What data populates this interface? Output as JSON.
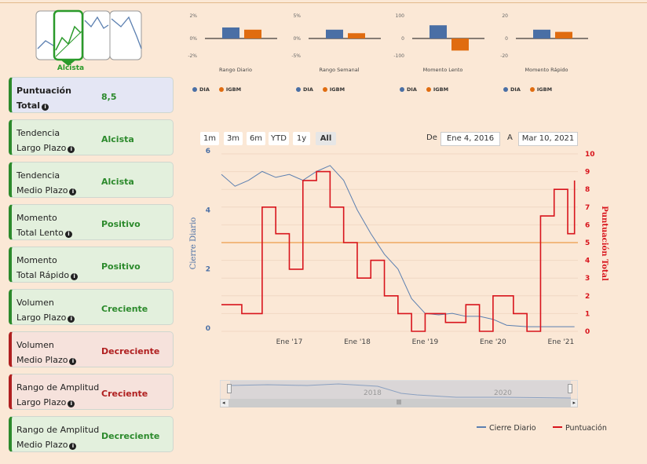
{
  "trend_label": "Alcista",
  "cards": [
    {
      "label1": "Puntuación",
      "label2": "Total",
      "value": "8,5",
      "kind": "total"
    },
    {
      "label1": "Tendencia",
      "label2": "Largo Plazo",
      "value": "Alcista",
      "kind": "pos"
    },
    {
      "label1": "Tendencia",
      "label2": "Medio Plazo",
      "value": "Alcista",
      "kind": "pos"
    },
    {
      "label1": "Momento",
      "label2": "Total Lento",
      "value": "Positivo",
      "kind": "pos"
    },
    {
      "label1": "Momento",
      "label2": "Total Rápido",
      "value": "Positivo",
      "kind": "pos"
    },
    {
      "label1": "Volumen",
      "label2": "Largo Plazo",
      "value": "Creciente",
      "kind": "pos"
    },
    {
      "label1": "Volumen",
      "label2": "Medio Plazo",
      "value": "Decreciente",
      "kind": "neg"
    },
    {
      "label1": "Rango de Amplitud",
      "label2": "Largo Plazo",
      "value": "Creciente",
      "kind": "neg"
    },
    {
      "label1": "Rango de Amplitud",
      "label2": "Medio Plazo",
      "value": "Decreciente",
      "kind": "pos"
    }
  ],
  "colors": {
    "dia": "#4a6fa5",
    "igbm": "#e06c10",
    "cierre": "#5b7fb0",
    "puntuacion": "#d8141c",
    "pos": "#2c8a2c",
    "neg": "#b02020"
  },
  "mini_charts": [
    {
      "title": "Rango Diario",
      "ticks": [
        "2%",
        "0%",
        "-2%"
      ],
      "dia": 1.0,
      "igbm": 0.8,
      "max": 2,
      "legend": [
        "DIA",
        "IGBM"
      ]
    },
    {
      "title": "Rango Semanal",
      "ticks": [
        "5%",
        "0%",
        "-5%"
      ],
      "dia": 2.0,
      "igbm": 1.2,
      "max": 5,
      "legend": [
        "DIA",
        "IGBM"
      ]
    },
    {
      "title": "Momento Lento",
      "ticks": [
        "100",
        "0",
        "-100"
      ],
      "dia": 60,
      "igbm": -55,
      "max": 100,
      "legend": [
        "DIA",
        "IGBM"
      ]
    },
    {
      "title": "Momento Rápido",
      "ticks": [
        "20",
        "0",
        "-20"
      ],
      "dia": 8,
      "igbm": 6,
      "max": 20,
      "legend": [
        "DIA",
        "IGBM"
      ]
    }
  ],
  "range_buttons": [
    "1m",
    "3m",
    "6m",
    "YTD",
    "1y",
    "All"
  ],
  "active_range": "All",
  "date_from_label": "De",
  "date_from": "Ene 4, 2016",
  "date_to_label": "A",
  "date_to": "Mar 10, 2021",
  "chart_data": {
    "type": "line",
    "xlabel": "",
    "ylabel_left": "Cierre Diario",
    "ylabel_right": "Puntuación Total",
    "x_ticks": [
      "Ene '17",
      "Ene '18",
      "Ene '19",
      "Ene '20",
      "Ene '21"
    ],
    "y_left_ticks": [
      "6",
      "4",
      "2",
      "0"
    ],
    "y_right_ticks": [
      "10",
      "9",
      "8",
      "7",
      "6",
      "5",
      "4",
      "3",
      "2",
      "1",
      "0"
    ],
    "ylim_left": [
      0,
      6
    ],
    "ylim_right": [
      0,
      10
    ],
    "threshold_right": 5,
    "series": [
      {
        "name": "Cierre Diario",
        "axis": "left",
        "x": [
          2016.0,
          2016.2,
          2016.4,
          2016.6,
          2016.8,
          2017.0,
          2017.2,
          2017.4,
          2017.6,
          2017.8,
          2018.0,
          2018.2,
          2018.4,
          2018.6,
          2018.8,
          2019.0,
          2019.2,
          2019.4,
          2019.6,
          2019.8,
          2020.0,
          2020.2,
          2020.5,
          2021.0,
          2021.2
        ],
        "y": [
          5.2,
          4.8,
          5.0,
          5.3,
          5.1,
          5.2,
          5.0,
          5.3,
          5.5,
          5.0,
          4.0,
          3.2,
          2.5,
          2.0,
          1.0,
          0.5,
          0.45,
          0.5,
          0.4,
          0.4,
          0.3,
          0.1,
          0.05,
          0.05,
          0.05
        ]
      },
      {
        "name": "Puntuación",
        "axis": "right",
        "x": [
          2016.0,
          2016.3,
          2016.6,
          2016.8,
          2017.0,
          2017.2,
          2017.4,
          2017.6,
          2017.8,
          2018.0,
          2018.2,
          2018.4,
          2018.6,
          2018.8,
          2019.0,
          2019.3,
          2019.6,
          2019.8,
          2020.0,
          2020.3,
          2020.5,
          2020.7,
          2020.9,
          2021.1,
          2021.2
        ],
        "y": [
          1.5,
          1.0,
          7.0,
          5.5,
          3.5,
          8.5,
          9.0,
          7.0,
          5.0,
          3.0,
          4.0,
          2.0,
          1.0,
          0.0,
          1.0,
          0.5,
          1.5,
          0.0,
          2.0,
          1.0,
          0.0,
          6.5,
          8.0,
          5.5,
          8.5
        ]
      }
    ]
  },
  "navigator_labels": [
    "2018",
    "2020"
  ],
  "legend_main": [
    "Cierre Diario",
    "Puntuación"
  ]
}
